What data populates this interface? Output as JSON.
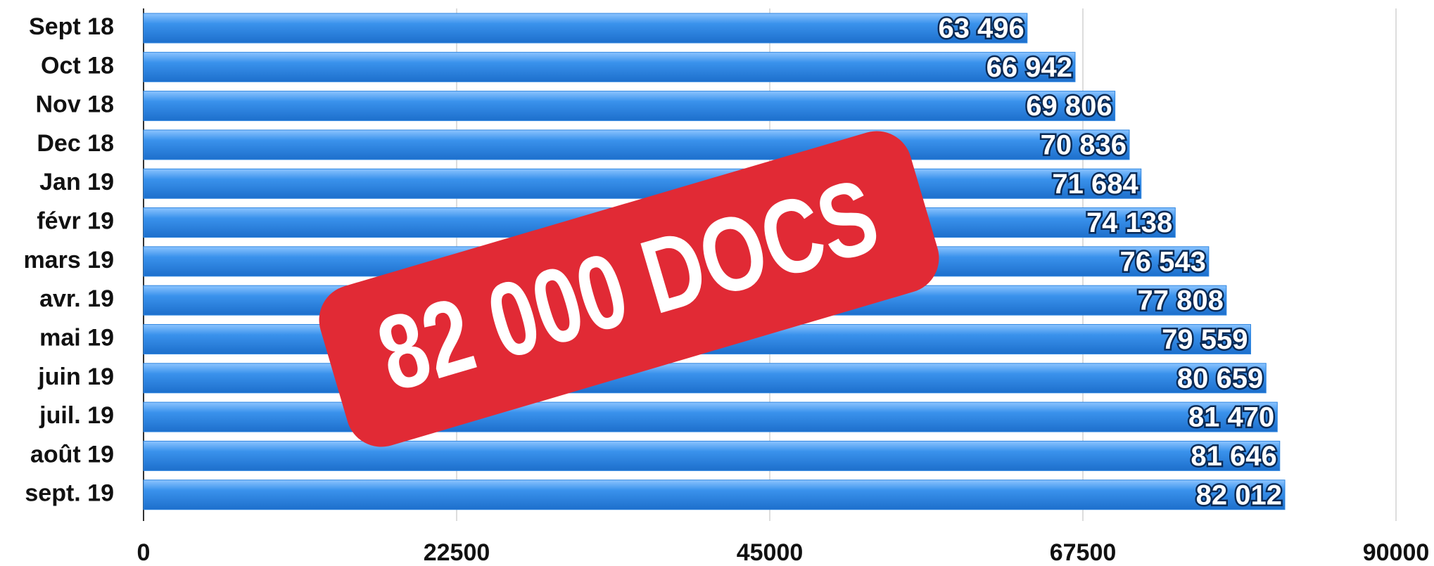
{
  "chart_data": {
    "type": "hbar",
    "categories": [
      "Sept 18",
      "Oct 18",
      "Nov 18",
      "Dec 18",
      "Jan 19",
      "févr 19",
      "mars 19",
      "avr. 19",
      "mai 19",
      "juin 19",
      "juil. 19",
      "août 19",
      "sept. 19"
    ],
    "values": [
      63496,
      66942,
      69806,
      70836,
      71684,
      74138,
      76543,
      77808,
      79559,
      80659,
      81470,
      81646,
      82012
    ],
    "value_labels": [
      "63 496",
      "66 942",
      "69 806",
      "70 836",
      "71 684",
      "74 138",
      "76 543",
      "77 808",
      "79 559",
      "80 659",
      "81 470",
      "81 646",
      "82 012"
    ],
    "color": "#2f86e0",
    "xlim": [
      0,
      90000
    ],
    "xticks": [
      0,
      22500,
      45000,
      67500,
      90000
    ],
    "grid": true,
    "annotation": "82 000 DOCS"
  }
}
